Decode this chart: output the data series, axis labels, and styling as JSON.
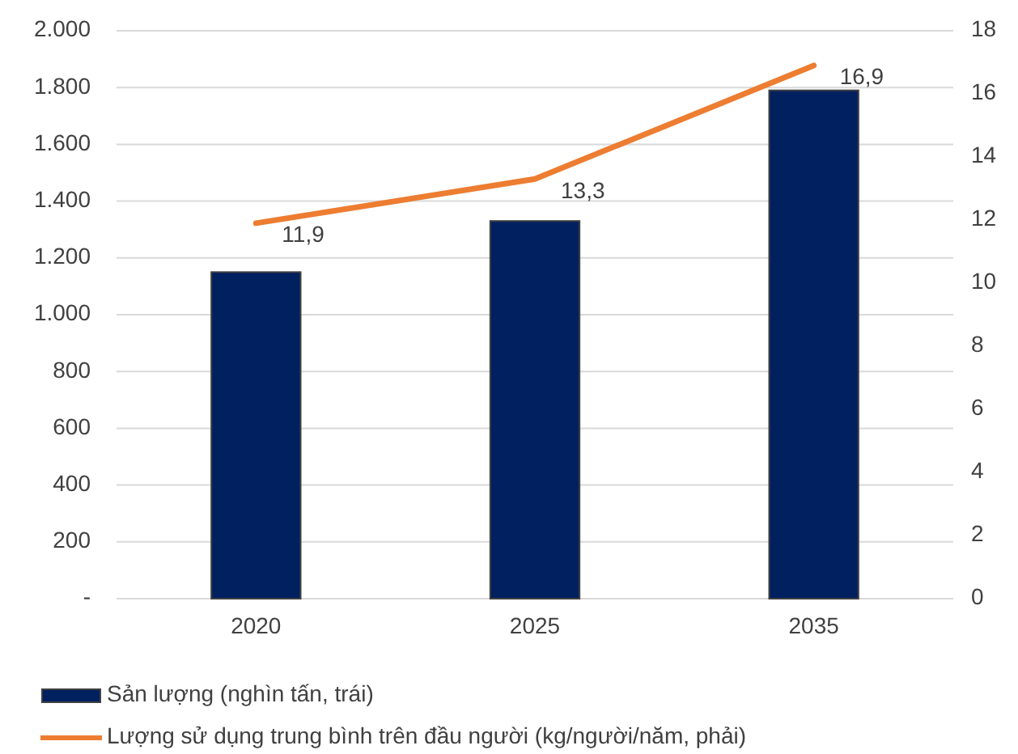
{
  "chart_data": {
    "type": "bar",
    "categories": [
      "2020",
      "2025",
      "2035"
    ],
    "series": [
      {
        "name": "Sản lượng (nghìn tấn, trái)",
        "color": "#002060",
        "values": [
          1150,
          1330,
          1790
        ]
      },
      {
        "name": "Lượng sử dụng trung bình trên đầu người (kg/người/năm, phải)",
        "type": "line",
        "axis": "y2",
        "color": "#ed7d31",
        "values": [
          11.9,
          13.3,
          16.9
        ],
        "value_labels": [
          "11,9",
          "13,3",
          "16,9"
        ]
      }
    ],
    "ylim": [
      0,
      2000
    ],
    "yticks": [
      {
        "value": 0,
        "label": "-"
      },
      200,
      400,
      600,
      800,
      {
        "value": 1000,
        "label": "1.000"
      },
      {
        "value": 1200,
        "label": "1.200"
      },
      {
        "value": 1400,
        "label": "1.400"
      },
      {
        "value": 1600,
        "label": "1.600"
      },
      {
        "value": 1800,
        "label": "1.800"
      },
      {
        "value": 2000,
        "label": "2.000"
      }
    ],
    "y2lim": [
      0,
      18
    ],
    "y2ticks": [
      0,
      2,
      4,
      6,
      8,
      10,
      12,
      14,
      16,
      18
    ],
    "grid": "y",
    "legend": "bottom"
  }
}
